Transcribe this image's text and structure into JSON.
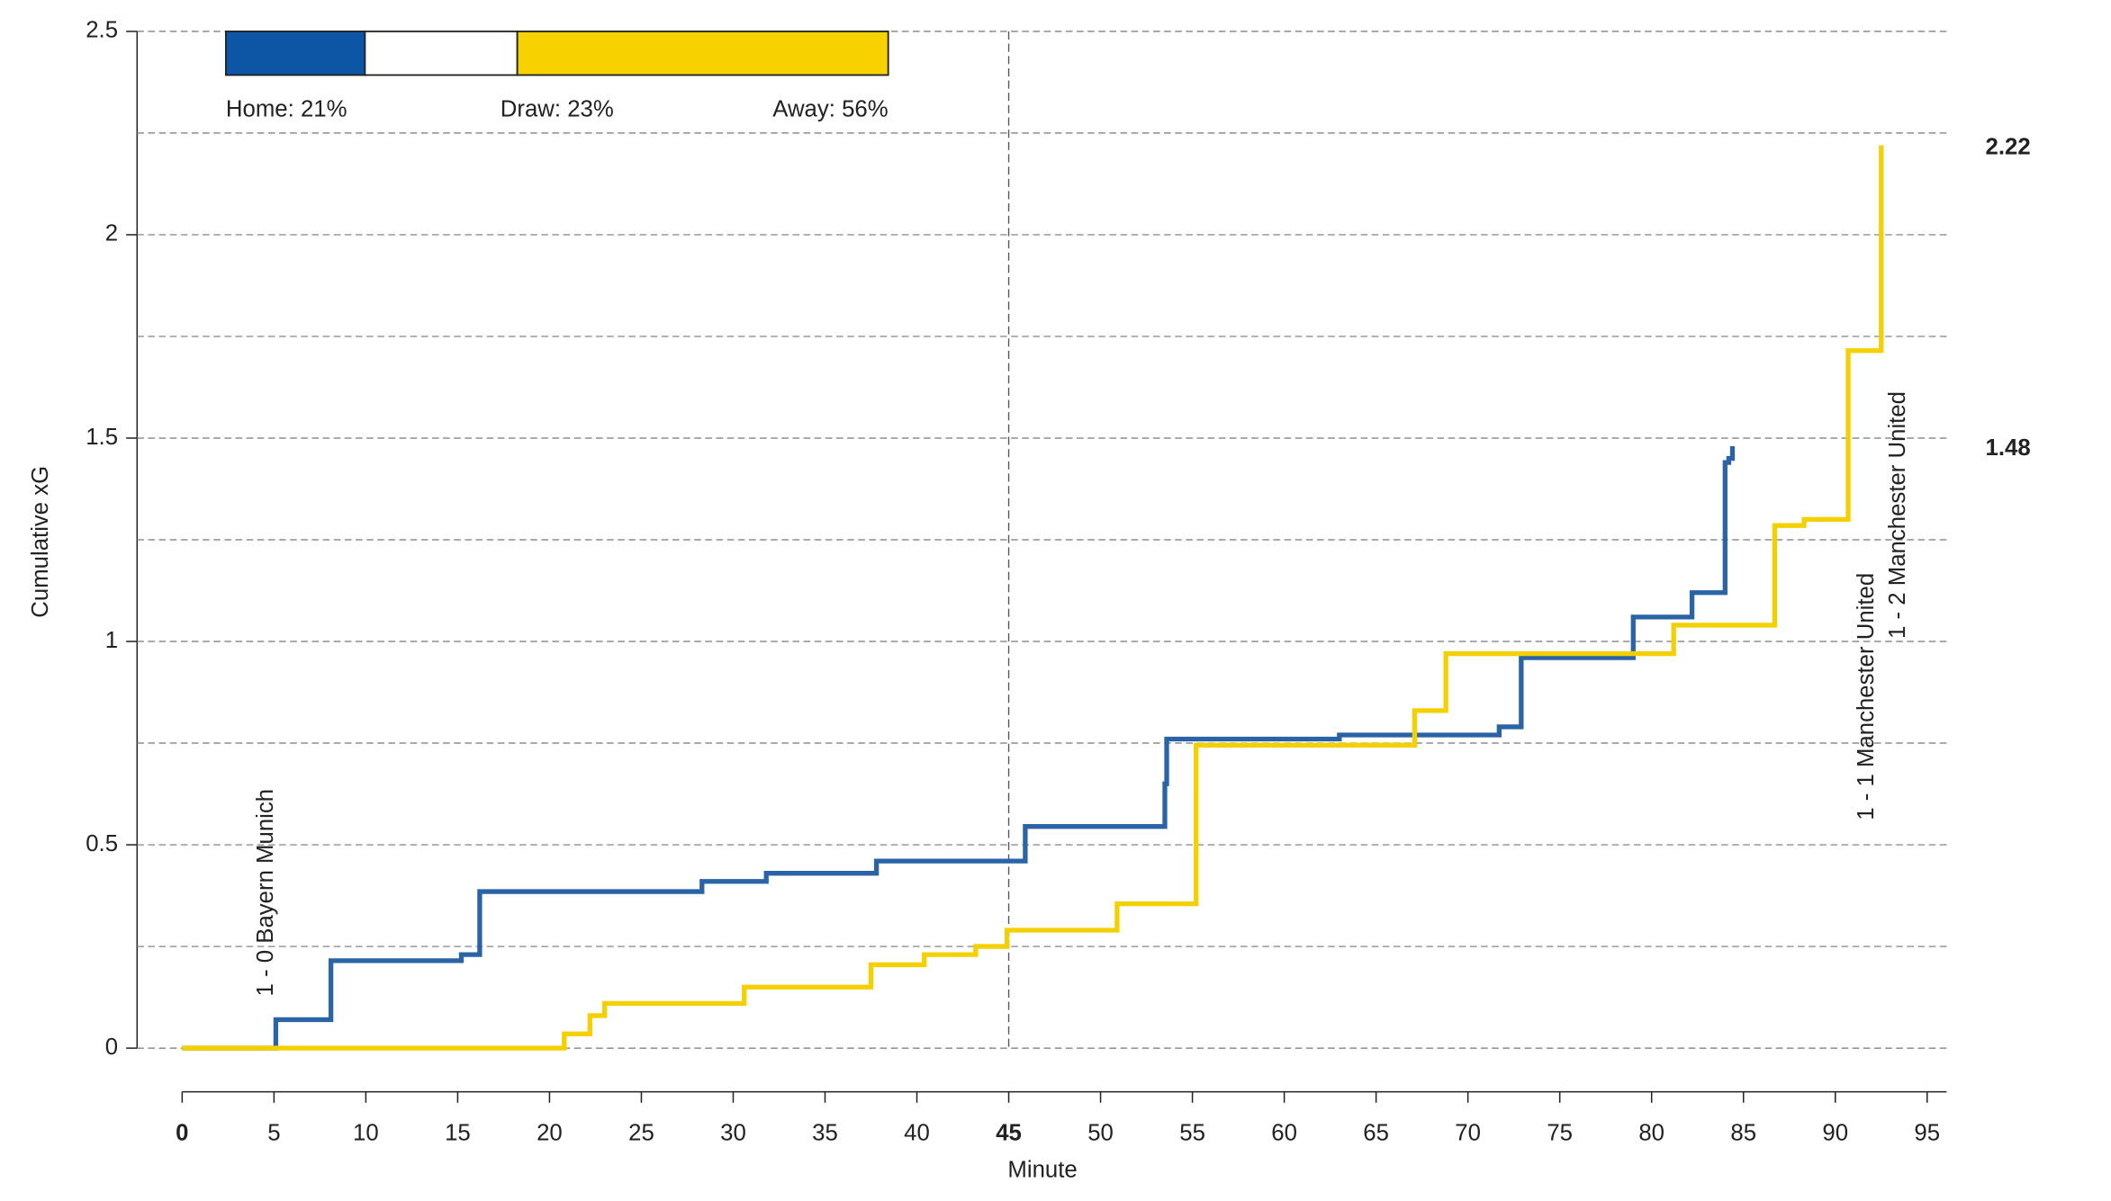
{
  "chart_data": {
    "type": "step",
    "xlabel": "Minute",
    "ylabel": "Cumulative xG",
    "xlim": [
      0,
      96
    ],
    "ylim": [
      0,
      2.5
    ],
    "xticks": [
      0,
      5,
      10,
      15,
      20,
      25,
      30,
      35,
      40,
      45,
      50,
      55,
      60,
      65,
      70,
      75,
      80,
      85,
      90,
      95
    ],
    "yticks": [
      0,
      0.5,
      1,
      1.5,
      2,
      2.5
    ],
    "minor_yticks": [
      0.25,
      0.75,
      1.25,
      1.75,
      2.25
    ],
    "grid": true,
    "halftime": 45,
    "series": [
      {
        "color": "#2a64a6",
        "x": [
          0,
          5.1,
          8.1,
          15.2,
          16.2,
          28.3,
          31.8,
          37.8,
          45.9,
          53.5,
          53.6,
          63,
          71.7,
          72.9,
          79,
          82.2,
          84,
          84.2,
          84.4
        ],
        "values": [
          0,
          0.07,
          0.215,
          0.23,
          0.385,
          0.41,
          0.43,
          0.46,
          0.545,
          0.65,
          0.76,
          0.77,
          0.79,
          0.96,
          1.06,
          1.12,
          1.44,
          1.45,
          1.48
        ]
      },
      {
        "color": "#f5d000",
        "x": [
          0,
          20.8,
          22.2,
          23.0,
          30.6,
          37.5,
          40.4,
          43.2,
          44.9,
          50.9,
          55.2,
          67.1,
          68.8,
          81.2,
          86.7,
          88.3,
          90.7,
          92.5
        ],
        "values": [
          0,
          0.035,
          0.08,
          0.11,
          0.15,
          0.205,
          0.23,
          0.25,
          0.29,
          0.355,
          0.745,
          0.83,
          0.97,
          1.04,
          1.285,
          1.3,
          1.715,
          2.22
        ]
      }
    ],
    "annotations": [
      "1 - 0 Bayern Munich",
      "1 - 1 Manchester United",
      "1 - 2 Manchester United"
    ],
    "probabilities": [
      {
        "label": "Home: 21%",
        "value": 21,
        "color": "#0d56a6"
      },
      {
        "label": "Draw: 23%",
        "value": 23,
        "color": "#ffffff"
      },
      {
        "label": "Away: 56%",
        "value": 56,
        "color": "#f7d200"
      }
    ]
  }
}
